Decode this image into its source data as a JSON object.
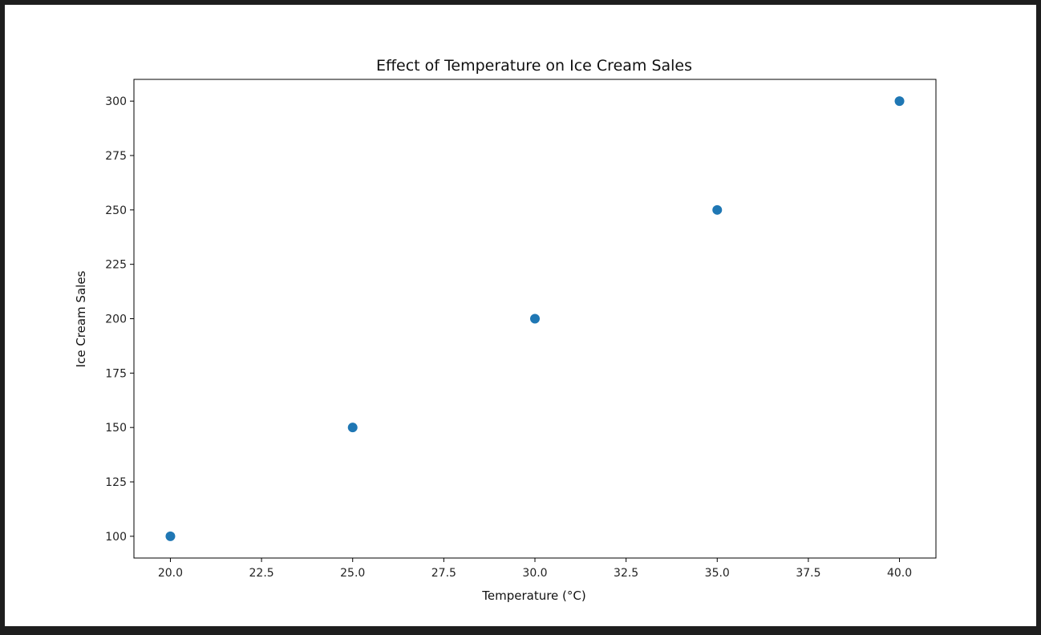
{
  "chart_data": {
    "type": "scatter",
    "title": "Effect of Temperature on Ice Cream Sales",
    "xlabel": "Temperature (°C)",
    "ylabel": "Ice Cream Sales",
    "xlim": [
      19.0,
      41.0
    ],
    "ylim": [
      90,
      310
    ],
    "x_ticks": [
      20.0,
      22.5,
      25.0,
      27.5,
      30.0,
      32.5,
      35.0,
      37.5,
      40.0
    ],
    "x_tick_labels": [
      "20.0",
      "22.5",
      "25.0",
      "27.5",
      "30.0",
      "32.5",
      "35.0",
      "37.5",
      "40.0"
    ],
    "y_ticks": [
      100,
      125,
      150,
      175,
      200,
      225,
      250,
      275,
      300
    ],
    "y_tick_labels": [
      "100",
      "125",
      "150",
      "175",
      "200",
      "225",
      "250",
      "275",
      "300"
    ],
    "grid": false,
    "series": [
      {
        "color": "#1f77b4",
        "x": [
          20,
          25,
          30,
          35,
          40
        ],
        "y": [
          100,
          150,
          200,
          250,
          300
        ]
      }
    ]
  }
}
